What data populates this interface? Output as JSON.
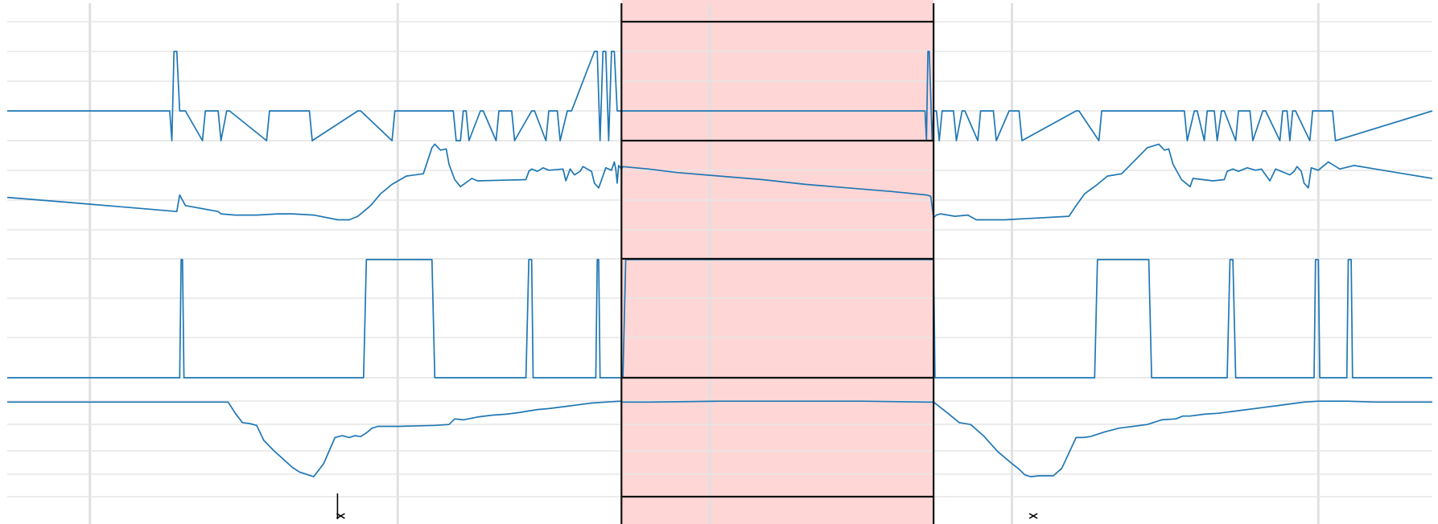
{
  "colors": {
    "line": "#1f77b4",
    "highlight_fill": "#ffd6d6",
    "border": "#111111",
    "grid": "#e0e0e0",
    "background": "#ffffff"
  },
  "icons": {
    "event_marker": "x-mark-icon"
  },
  "chart_data": {
    "type": "line",
    "title": "",
    "xlabel": "",
    "xlim": [
      0,
      1000
    ],
    "highlight_region": {
      "x_start": 431,
      "x_end": 650
    },
    "x_gridlines": [
      58,
      274,
      493,
      705,
      920
    ],
    "event_markers": [
      {
        "x": 234,
        "symbol": "x"
      },
      {
        "x": 720,
        "symbol": "x"
      }
    ],
    "tick_labels": [],
    "legend": "none",
    "series": [
      {
        "ylim": [
          0,
          4
        ],
        "ygrid": [
          0,
          1,
          2,
          3,
          4
        ],
        "x": [
          0,
          114,
          115.5,
          117,
          119,
          121,
          125,
          137,
          139,
          148,
          150,
          154,
          156,
          182,
          184,
          212,
          214,
          246,
          248,
          270,
          272,
          313,
          315,
          318,
          320,
          322,
          324,
          332,
          334,
          343,
          345,
          354,
          356,
          368,
          370,
          378,
          380,
          386,
          388,
          393,
          396,
          412,
          414,
          416,
          418,
          420,
          422,
          424,
          426,
          428,
          430,
          432,
          450,
          470,
          520,
          550,
          560,
          571,
          586,
          598,
          643,
          644,
          645,
          646,
          647,
          649,
          650,
          652,
          654,
          656,
          658,
          664,
          666,
          670,
          672,
          681,
          683,
          692,
          694,
          703,
          705,
          710,
          712,
          750,
          752,
          766,
          768,
          826,
          828,
          833,
          835,
          840,
          842,
          847,
          849,
          852,
          854,
          862,
          864,
          872,
          874,
          881,
          883,
          893,
          895,
          898,
          900,
          902,
          904,
          914,
          916,
          930,
          932,
          1000
        ],
        "y": [
          1,
          1,
          0,
          3,
          3,
          1,
          1,
          0,
          1,
          1,
          0,
          1,
          1,
          0,
          1,
          1,
          0,
          1,
          1,
          0,
          1,
          1,
          0,
          0,
          1,
          1,
          0,
          1,
          1,
          0,
          1,
          1,
          0,
          1,
          1,
          0,
          1,
          1,
          0,
          1,
          1,
          3,
          3,
          0,
          3,
          3,
          0,
          3,
          3,
          1,
          1,
          1,
          1,
          1,
          1,
          1,
          1,
          1,
          1,
          1,
          1,
          1,
          0,
          3,
          3,
          0,
          1,
          1,
          0,
          1,
          1,
          1,
          0,
          1,
          1,
          0,
          1,
          1,
          0,
          1,
          1,
          1,
          0,
          1,
          1,
          0,
          1,
          1,
          0,
          1,
          1,
          0,
          1,
          1,
          0,
          1,
          1,
          0,
          1,
          1,
          0,
          1,
          1,
          0,
          1,
          1,
          0,
          1,
          1,
          0,
          1,
          1,
          0,
          1
        ]
      },
      {
        "ylim": [
          0,
          1
        ],
        "ygrid": [
          0,
          1,
          2,
          3,
          4
        ],
        "x": [
          0,
          20,
          40,
          60,
          80,
          100,
          119,
          121,
          125,
          148,
          150,
          160,
          175,
          190,
          200,
          215,
          232,
          240,
          246,
          255,
          262,
          270,
          280,
          292,
          298,
          300,
          304,
          308,
          310,
          314,
          318,
          326,
          330,
          364,
          366,
          368,
          372,
          376,
          380,
          390,
          392,
          395,
          398,
          402,
          404,
          410,
          412,
          415,
          420,
          424,
          426,
          427,
          428,
          429,
          431,
          432,
          450,
          470,
          500,
          530,
          560,
          590,
          620,
          645,
          648,
          650,
          652,
          655,
          660,
          665,
          674,
          680,
          700,
          745,
          750,
          756,
          765,
          772,
          782,
          800,
          808,
          812,
          815,
          818,
          824,
          830,
          832,
          846,
          854,
          856,
          860,
          864,
          870,
          876,
          880,
          886,
          890,
          900,
          903,
          905,
          908,
          910,
          913,
          915,
          920,
          927,
          935,
          945,
          960,
          980,
          1000
        ],
        "y": [
          0.52,
          0.5,
          0.48,
          0.46,
          0.44,
          0.42,
          0.4,
          0.54,
          0.45,
          0.4,
          0.38,
          0.37,
          0.37,
          0.38,
          0.38,
          0.37,
          0.33,
          0.33,
          0.36,
          0.45,
          0.55,
          0.63,
          0.7,
          0.72,
          0.94,
          0.97,
          0.92,
          0.93,
          0.8,
          0.67,
          0.61,
          0.68,
          0.66,
          0.67,
          0.74,
          0.76,
          0.74,
          0.77,
          0.75,
          0.76,
          0.66,
          0.76,
          0.71,
          0.74,
          0.78,
          0.74,
          0.64,
          0.6,
          0.77,
          0.75,
          0.82,
          0.76,
          0.64,
          0.79,
          0.76,
          0.78,
          0.76,
          0.73,
          0.7,
          0.67,
          0.63,
          0.6,
          0.57,
          0.54,
          0.53,
          0.35,
          0.37,
          0.38,
          0.37,
          0.36,
          0.37,
          0.33,
          0.33,
          0.36,
          0.45,
          0.55,
          0.63,
          0.7,
          0.72,
          0.94,
          0.97,
          0.92,
          0.93,
          0.8,
          0.67,
          0.61,
          0.68,
          0.66,
          0.67,
          0.74,
          0.76,
          0.74,
          0.77,
          0.75,
          0.76,
          0.66,
          0.76,
          0.71,
          0.74,
          0.78,
          0.74,
          0.64,
          0.6,
          0.77,
          0.75,
          0.82,
          0.76,
          0.79,
          0.76,
          0.72,
          0.68
        ]
      },
      {
        "ylim": [
          0,
          1
        ],
        "ygrid": [
          0,
          1,
          2,
          3,
          4
        ],
        "x": [
          0,
          121,
          122,
          123,
          124,
          250,
          252,
          254,
          296,
          298,
          300,
          364,
          366,
          368,
          369,
          370,
          413,
          414,
          415,
          416,
          432,
          434,
          650,
          651,
          652,
          763,
          765,
          801,
          803,
          856,
          858,
          860,
          862,
          917,
          918,
          920,
          921,
          940,
          941,
          943,
          944,
          1000
        ],
        "y": [
          0,
          0,
          1,
          1,
          0,
          0,
          1,
          1,
          1,
          1,
          0,
          0,
          1,
          1,
          0,
          0,
          0,
          1,
          1,
          0,
          0,
          1,
          1,
          0,
          0,
          0,
          1,
          1,
          0,
          0,
          1,
          1,
          0,
          0,
          1,
          1,
          0,
          0,
          1,
          1,
          0,
          0
        ]
      },
      {
        "ylim": [
          0,
          1
        ],
        "ygrid": [
          0,
          1,
          2,
          3,
          4,
          5
        ],
        "x": [
          0,
          60,
          100,
          150,
          155,
          160,
          165,
          170,
          175,
          180,
          187,
          195,
          200,
          205,
          215,
          222,
          230,
          235,
          240,
          244,
          248,
          252,
          256,
          260,
          266,
          275,
          300,
          310,
          314,
          320,
          330,
          340,
          350,
          360,
          364,
          372,
          380,
          390,
          395,
          400,
          410,
          420,
          430,
          432,
          450,
          500,
          550,
          600,
          645,
          650,
          660,
          668,
          676,
          685,
          695,
          705,
          710,
          714,
          718,
          724,
          734,
          740,
          750,
          755,
          760,
          762,
          770,
          780,
          790,
          800,
          810,
          820,
          825,
          830,
          840,
          850,
          860,
          870,
          880,
          890,
          900,
          905,
          910,
          920,
          940,
          960,
          1000
        ],
        "y": [
          0.98,
          0.98,
          0.98,
          0.98,
          0.98,
          0.86,
          0.76,
          0.75,
          0.73,
          0.57,
          0.46,
          0.35,
          0.28,
          0.23,
          0.18,
          0.32,
          0.6,
          0.62,
          0.6,
          0.62,
          0.61,
          0.65,
          0.7,
          0.72,
          0.72,
          0.72,
          0.73,
          0.74,
          0.8,
          0.79,
          0.82,
          0.84,
          0.85,
          0.87,
          0.88,
          0.9,
          0.91,
          0.93,
          0.94,
          0.95,
          0.97,
          0.98,
          0.99,
          0.98,
          0.98,
          0.99,
          0.99,
          0.99,
          0.98,
          0.98,
          0.86,
          0.76,
          0.74,
          0.62,
          0.45,
          0.32,
          0.26,
          0.2,
          0.18,
          0.19,
          0.19,
          0.27,
          0.6,
          0.6,
          0.61,
          0.62,
          0.66,
          0.7,
          0.72,
          0.74,
          0.79,
          0.8,
          0.83,
          0.83,
          0.85,
          0.86,
          0.88,
          0.9,
          0.92,
          0.94,
          0.96,
          0.97,
          0.98,
          0.99,
          0.99,
          0.98,
          0.98
        ]
      }
    ]
  }
}
